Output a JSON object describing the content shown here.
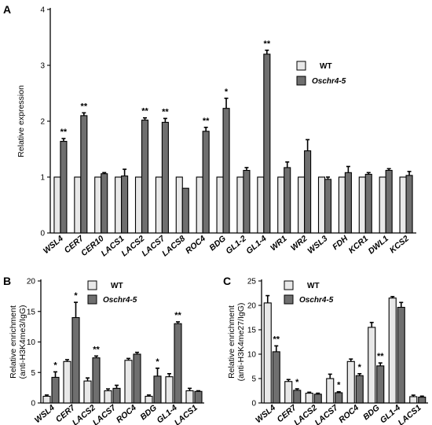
{
  "colors": {
    "wt": "#e8e8e8",
    "mut": "#6f6f6f",
    "axis": "#000000"
  },
  "chart_data": [
    {
      "panel": "A",
      "type": "bar",
      "ylabel": "Relative expression",
      "ylim": [
        0,
        4
      ],
      "yticks": [
        0,
        1,
        2,
        3,
        4
      ],
      "categories": [
        "WSL4",
        "CER7",
        "CER10",
        "LACS1",
        "LACS2",
        "LACS7",
        "LACS8",
        "ROC4",
        "BDG",
        "GL1-2",
        "GL1-4",
        "WR1",
        "WR2",
        "WSL3",
        "FDH",
        "KCR1",
        "DWL1",
        "KCS2"
      ],
      "series": [
        {
          "name": "WT",
          "values": [
            1,
            1,
            1,
            1,
            1,
            1,
            1,
            1,
            1,
            1,
            1,
            1,
            1,
            1,
            1,
            1,
            1,
            1
          ],
          "errors": [
            0,
            0,
            0,
            0,
            0,
            0,
            0,
            0,
            0,
            0,
            0,
            0,
            0,
            0,
            0,
            0,
            0,
            0
          ]
        },
        {
          "name": "Oschr4-5",
          "values": [
            1.64,
            2.1,
            1.06,
            1.02,
            2.02,
            1.98,
            0.8,
            1.82,
            2.23,
            1.12,
            3.2,
            1.17,
            1.47,
            0.96,
            1.08,
            1.05,
            1.12,
            1.03
          ],
          "errors": [
            0.05,
            0.05,
            0.02,
            0.12,
            0.04,
            0.07,
            0,
            0.07,
            0.18,
            0.05,
            0.07,
            0.1,
            0.2,
            0.04,
            0.11,
            0.03,
            0.03,
            0.07
          ]
        }
      ],
      "significance": [
        "**",
        "**",
        "",
        "",
        "**",
        "**",
        "",
        "**",
        "*",
        "",
        "**",
        "",
        "",
        "",
        "",
        "",
        "",
        ""
      ],
      "legend": "top-right"
    },
    {
      "panel": "B",
      "type": "bar",
      "ylabel": [
        "Relative enrichment",
        "(anti-H3K4me3/IgG)"
      ],
      "ylim": [
        0,
        20
      ],
      "yticks": [
        0,
        5,
        10,
        15,
        20
      ],
      "categories": [
        "WSL4",
        "CER7",
        "LACS2",
        "LACS7",
        "ROC4",
        "BDG",
        "GL1-4",
        "LACS1"
      ],
      "series": [
        {
          "name": "WT",
          "values": [
            1.1,
            6.8,
            3.6,
            2.0,
            7.0,
            1.1,
            4.3,
            2.0
          ],
          "errors": [
            0.2,
            0.3,
            0.5,
            0.3,
            0.3,
            0.2,
            0.5,
            0.4
          ]
        },
        {
          "name": "Oschr4-5",
          "values": [
            4.2,
            14.0,
            7.4,
            2.4,
            8.0,
            4.4,
            13.0,
            1.9
          ],
          "errors": [
            0.9,
            2.5,
            0.3,
            0.5,
            0.3,
            1.3,
            0.3,
            0.1
          ]
        }
      ],
      "significance": [
        "*",
        "*",
        "**",
        "",
        "",
        "*",
        "**",
        ""
      ],
      "legend": "top-left"
    },
    {
      "panel": "C",
      "type": "bar",
      "ylabel": [
        "Relative enrichment",
        "(anti-H3K4me27/IgG)"
      ],
      "ylim": [
        0,
        25
      ],
      "yticks": [
        0,
        5,
        10,
        15,
        20,
        25
      ],
      "categories": [
        "WSL4",
        "CER7",
        "LACS2",
        "LACS7",
        "ROC4",
        "BDG",
        "GL1-4",
        "LACS1"
      ],
      "series": [
        {
          "name": "WT",
          "values": [
            20.5,
            4.4,
            2.0,
            5.0,
            8.5,
            15.5,
            21.5,
            1.3
          ],
          "errors": [
            1.5,
            0.4,
            0.2,
            0.9,
            0.5,
            1.0,
            0.3,
            0.3
          ]
        },
        {
          "name": "Oschr4-5",
          "values": [
            10.5,
            2.6,
            1.8,
            2.1,
            5.6,
            7.6,
            19.6,
            1.2
          ],
          "errors": [
            1.2,
            0.3,
            0.2,
            0.2,
            0.4,
            0.6,
            1.0,
            0.2
          ]
        }
      ],
      "significance": [
        "**",
        "*",
        "",
        "*",
        "*",
        "**",
        "",
        ""
      ],
      "legend": "top-right"
    }
  ]
}
